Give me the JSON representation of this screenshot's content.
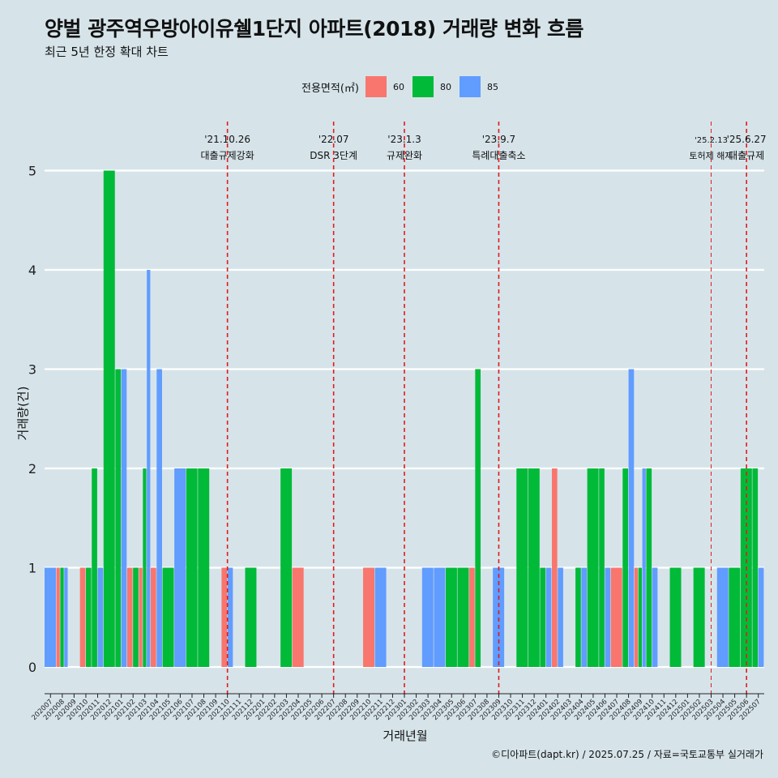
{
  "title": "양벌 광주역우방아이유쉘1단지 아파트(2018) 거래량 변화 흐름",
  "subtitle": "최근 5년 한정 확대 차트",
  "legend": {
    "title": "전용면적(㎡)",
    "items": [
      {
        "label": "60",
        "color": "#f8766d"
      },
      {
        "label": "80",
        "color": "#00ba38"
      },
      {
        "label": "85",
        "color": "#619cff"
      }
    ]
  },
  "caption": "©디아파트(dapt.kr) / 2025.07.25 / 자료=국토교통부 실거래가",
  "chart_data": {
    "type": "bar",
    "xlabel": "거래년월",
    "ylabel": "거래량(건)",
    "ylim": [
      0,
      5
    ],
    "yticks": [
      0,
      1,
      2,
      3,
      4,
      5
    ],
    "grid": true,
    "legend_position": "top",
    "categories": [
      "202007",
      "202008",
      "202009",
      "202010",
      "202011",
      "202012",
      "202101",
      "202102",
      "202103",
      "202104",
      "202105",
      "202106",
      "202107",
      "202108",
      "202109",
      "202110",
      "202111",
      "202112",
      "202201",
      "202202",
      "202203",
      "202204",
      "202205",
      "202206",
      "202207",
      "202208",
      "202209",
      "202210",
      "202211",
      "202212",
      "202301",
      "202302",
      "202303",
      "202304",
      "202305",
      "202306",
      "202307",
      "202308",
      "202309",
      "202310",
      "202311",
      "202312",
      "202401",
      "202402",
      "202403",
      "202404",
      "202405",
      "202406",
      "202407",
      "202408",
      "202409",
      "202410",
      "202411",
      "202412",
      "202501",
      "202502",
      "202503",
      "202504",
      "202505",
      "202506",
      "202507"
    ],
    "series": [
      {
        "name": "60",
        "color": "#f8766d",
        "values": {
          "202008": 1,
          "202010": 1,
          "202102": 1,
          "202103": 1,
          "202104": 1,
          "202110": 1,
          "202204": 1,
          "202210": 1,
          "202307": 1,
          "202402": 2,
          "202407": 1,
          "202409": 1
        }
      },
      {
        "name": "80",
        "color": "#00ba38",
        "values": {
          "202008": 1,
          "202010": 1,
          "202011": 2,
          "202012": 5,
          "202101": 3,
          "202102": 1,
          "202103": 2,
          "202105": 1,
          "202107": 2,
          "202108": 2,
          "202112": 1,
          "202203": 2,
          "202305": 1,
          "202306": 1,
          "202307": 3,
          "202311": 2,
          "202312": 2,
          "202401": 1,
          "202404": 1,
          "202405": 2,
          "202406": 2,
          "202408": 2,
          "202409": 1,
          "202410": 2,
          "202412": 1,
          "202502": 1,
          "202505": 1,
          "202506": 2,
          "202507": 2
        }
      },
      {
        "name": "85",
        "color": "#619cff",
        "values": {
          "202007": 1,
          "202008": 1,
          "202011": 1,
          "202101": 3,
          "202103": 4,
          "202104": 3,
          "202106": 2,
          "202110": 1,
          "202211": 1,
          "202303": 1,
          "202304": 1,
          "202309": 1,
          "202401": 1,
          "202402": 1,
          "202404": 1,
          "202406": 1,
          "202408": 3,
          "202409": 2,
          "202410": 1,
          "202504": 1,
          "202507": 1
        }
      }
    ],
    "annotations": [
      {
        "x": "202110",
        "date": "'21.10.26",
        "label": "대출규제강화"
      },
      {
        "x": "202207",
        "date": "'22.07",
        "label": "DSR 3단계"
      },
      {
        "x": "202301",
        "date": "'23.1.3",
        "label": "규제완화"
      },
      {
        "x": "202309",
        "date": "'23.9.7",
        "label": "특례대출축소"
      },
      {
        "x": "202503",
        "date": "'25.2.13",
        "label": "토허제 해제"
      },
      {
        "x": "202506",
        "date": "'25.6.27",
        "label": "대출규제"
      }
    ]
  }
}
